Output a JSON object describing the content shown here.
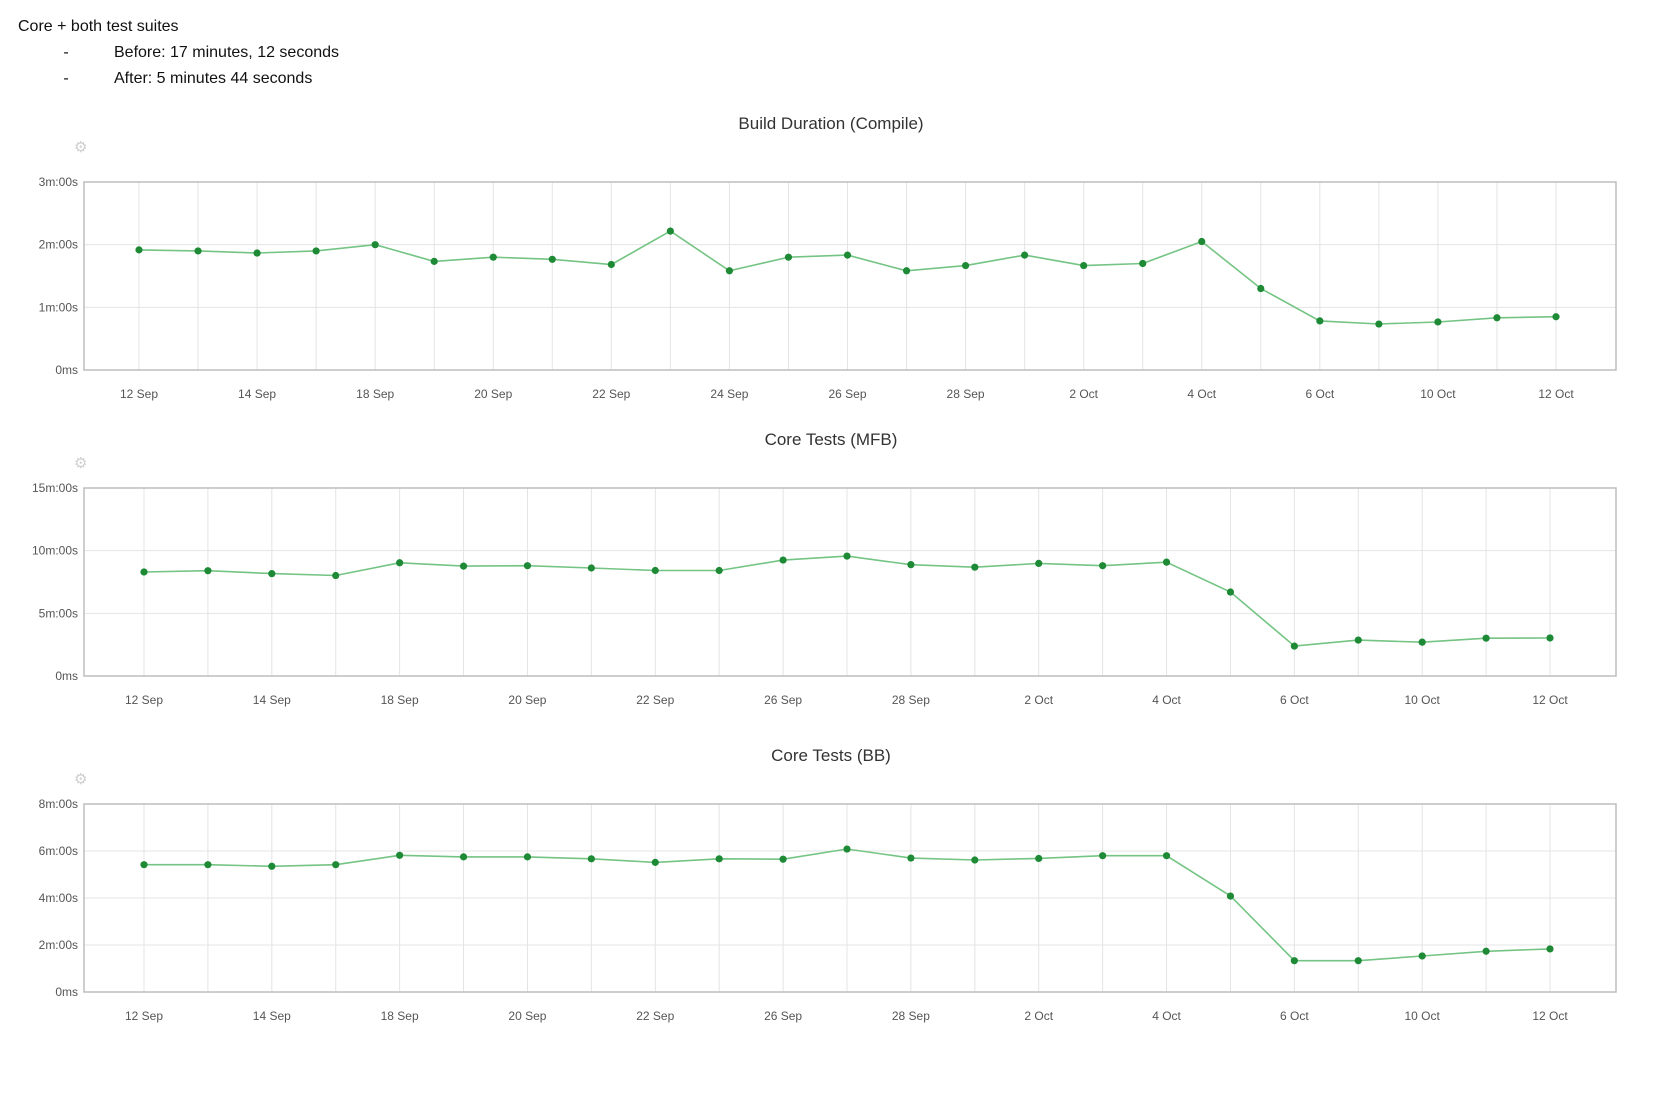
{
  "notes": {
    "heading": "Core + both test suites",
    "bullets": [
      {
        "marker": "-",
        "text": "Before: 17 minutes, 12 seconds"
      },
      {
        "marker": "-",
        "text": "After: 5 minutes 44 seconds"
      }
    ]
  },
  "icons": {
    "settings": "gear-icon"
  },
  "colors": {
    "line": "#74c483",
    "point": "#1e8a36",
    "grid": "#e4e4e4",
    "frame": "#bdbdbd",
    "axis": "#555555"
  },
  "chart_data": [
    {
      "type": "line",
      "title": "Build Duration (Compile)",
      "xlabel": "",
      "ylabel": "",
      "y_unit": "seconds",
      "yticks": [
        {
          "v": 0,
          "label": "0ms"
        },
        {
          "v": 60,
          "label": "1m:00s"
        },
        {
          "v": 120,
          "label": "2m:00s"
        },
        {
          "v": 180,
          "label": "3m:00s"
        }
      ],
      "ylim": [
        0,
        180
      ],
      "xtick_labels": [
        "12 Sep",
        "14 Sep",
        "18 Sep",
        "20 Sep",
        "22 Sep",
        "24 Sep",
        "26 Sep",
        "28 Sep",
        "2 Oct",
        "4 Oct",
        "6 Oct",
        "10 Oct",
        "12 Oct"
      ],
      "xtick_at": [
        0,
        2,
        4,
        6,
        8,
        10,
        12,
        14,
        16,
        18,
        20,
        22,
        24
      ],
      "values": [
        115,
        114,
        112,
        114,
        120,
        104,
        108,
        106,
        101,
        133,
        95,
        108,
        110,
        95,
        100,
        110,
        100,
        102,
        123,
        78,
        47,
        44,
        46,
        50,
        51
      ],
      "grid": true
    },
    {
      "type": "line",
      "title": "Core Tests (MFB)",
      "xlabel": "",
      "ylabel": "",
      "y_unit": "seconds",
      "yticks": [
        {
          "v": 0,
          "label": "0ms"
        },
        {
          "v": 300,
          "label": "5m:00s"
        },
        {
          "v": 600,
          "label": "10m:00s"
        },
        {
          "v": 900,
          "label": "15m:00s"
        }
      ],
      "ylim": [
        0,
        900
      ],
      "xtick_labels": [
        "12 Sep",
        "14 Sep",
        "18 Sep",
        "20 Sep",
        "22 Sep",
        "26 Sep",
        "28 Sep",
        "2 Oct",
        "4 Oct",
        "6 Oct",
        "10 Oct",
        "12 Oct"
      ],
      "xtick_at": [
        0,
        2,
        4,
        6,
        8,
        10,
        12,
        14,
        16,
        18,
        20,
        22
      ],
      "values": [
        498,
        504,
        490,
        481,
        542,
        526,
        528,
        517,
        505,
        505,
        555,
        574,
        533,
        521,
        539,
        528,
        545,
        402,
        143,
        172,
        162,
        181,
        182
      ],
      "grid": true
    },
    {
      "type": "line",
      "title": "Core Tests (BB)",
      "xlabel": "",
      "ylabel": "",
      "y_unit": "seconds",
      "yticks": [
        {
          "v": 0,
          "label": "0ms"
        },
        {
          "v": 120,
          "label": "2m:00s"
        },
        {
          "v": 240,
          "label": "4m:00s"
        },
        {
          "v": 360,
          "label": "6m:00s"
        },
        {
          "v": 480,
          "label": "8m:00s"
        }
      ],
      "ylim": [
        0,
        480
      ],
      "xtick_labels": [
        "12 Sep",
        "14 Sep",
        "18 Sep",
        "20 Sep",
        "22 Sep",
        "26 Sep",
        "28 Sep",
        "2 Oct",
        "4 Oct",
        "6 Oct",
        "10 Oct",
        "12 Oct"
      ],
      "xtick_at": [
        0,
        2,
        4,
        6,
        8,
        10,
        12,
        14,
        16,
        18,
        20,
        22
      ],
      "values": [
        325,
        325,
        321,
        325,
        349,
        345,
        345,
        340,
        331,
        340,
        339,
        365,
        342,
        337,
        341,
        348,
        348,
        245,
        80,
        80,
        92,
        104,
        110
      ],
      "grid": true
    }
  ]
}
